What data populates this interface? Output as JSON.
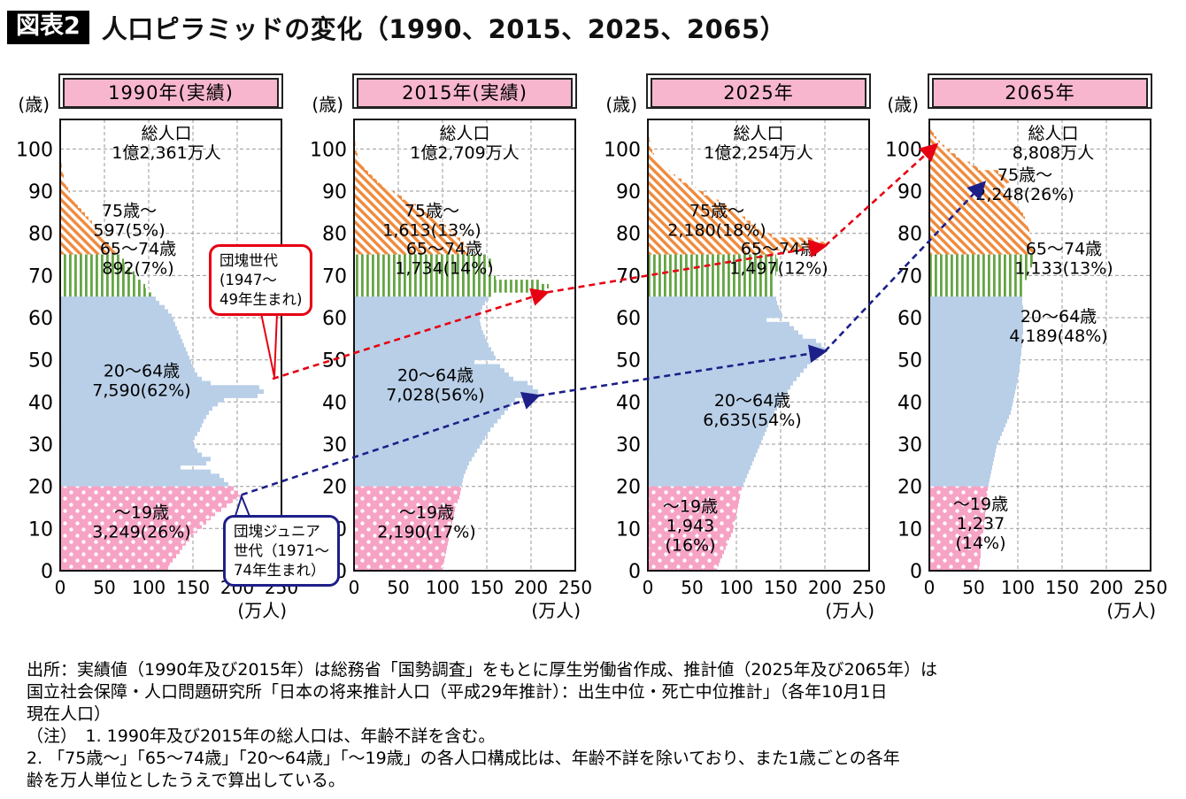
{
  "title": {
    "tag": "図表2",
    "text": "人口ピラミッドの変化（1990、2015、2025、2065）"
  },
  "axes": {
    "age_unit": "(歳)",
    "pop_unit": "(万人)",
    "age_ticks": [
      0,
      10,
      20,
      30,
      40,
      50,
      60,
      70,
      80,
      90,
      100
    ],
    "pop_ticks": [
      0,
      50,
      100,
      150,
      200,
      250
    ]
  },
  "colors": {
    "orange": "#ef8a3c",
    "green": "#64a544",
    "blue": "#b9cfe8",
    "pink": "#f6a3c5",
    "header_pink": "#f8b6ce",
    "red_accent": "#e60012",
    "blue_accent": "#1d2088"
  },
  "callouts": {
    "dankai": {
      "lines": [
        "団塊世代",
        "(1947〜",
        "49年生まれ)"
      ]
    },
    "dankai_junior": {
      "lines": [
        "団塊ジュニア",
        "世代（1971〜",
        "74年生まれ）"
      ]
    }
  },
  "source": {
    "lines": [
      "出所：実績値（1990年及び2015年）は総務省「国勢調査」をもとに厚生労働省作成、推計値（2025年及び2065年）は",
      "国立社会保障・人口問題研究所「日本の将来推計人口（平成29年推計）：出生中位・死亡中位推計」（各年10月1日",
      "現在人口）",
      "（注）　1. 1990年及び2015年の総人口は、年齢不詳を含む。",
      "2. 「75歳〜」「65〜74歳」「20〜64歳」「〜19歳」の各人口構成比は、年齢不詳を除いており、また1歳ごとの各年",
      "齢を万人単位としたうえで算出している。"
    ]
  },
  "chart_data": {
    "type": "bar",
    "orientation": "horizontal-population-pyramid",
    "unit": "万人",
    "age_range": [
      0,
      104
    ],
    "pop_axis_range": [
      0,
      250
    ],
    "panels": [
      {
        "id": "1990",
        "header": "1990年(実績)",
        "total_lines": [
          "総人口",
          "1億2,361万人"
        ],
        "groups": [
          {
            "label": "75歳〜",
            "value_label": "597(5%)",
            "label_lines": [
              "75歳〜",
              "597(5%)"
            ],
            "range": [
              75,
              104
            ],
            "pattern": "orange-diagonal"
          },
          {
            "label": "65〜74歳",
            "value_label": "892(7%)",
            "label_lines": [
              "65〜74歳",
              "892(7%)"
            ],
            "range": [
              65,
              74
            ],
            "pattern": "green-vertical"
          },
          {
            "label": "20〜64歳",
            "value_label": "7,590(62%)",
            "label_lines": [
              "20〜64歳",
              "7,590(62%)"
            ],
            "range": [
              20,
              64
            ],
            "pattern": "blue-solid"
          },
          {
            "label": "〜19歳",
            "value_label": "3,249(26%)",
            "label_lines": [
              "〜19歳",
              "3,249(26%)"
            ],
            "range": [
              0,
              19
            ],
            "pattern": "pink-dots"
          }
        ],
        "by_age": [
          122,
          124,
          127,
          131,
          135,
          138,
          142,
          146,
          150,
          155,
          160,
          165,
          170,
          175,
          182,
          188,
          195,
          205,
          201,
          196,
          190,
          185,
          180,
          170,
          136,
          165,
          170,
          160,
          155,
          152,
          150,
          152,
          155,
          158,
          160,
          162,
          165,
          168,
          172,
          178,
          185,
          223,
          230,
          225,
          170,
          160,
          155,
          152,
          150,
          148,
          146,
          144,
          142,
          140,
          138,
          136,
          134,
          132,
          130,
          128,
          126,
          122,
          118,
          112,
          108,
          104,
          100,
          96,
          92,
          88,
          84,
          80,
          76,
          72,
          68,
          64,
          60,
          56,
          52,
          48,
          44,
          40,
          36,
          32,
          28,
          24,
          20,
          17,
          14,
          11,
          9,
          7,
          5,
          4,
          3,
          2,
          1.5,
          1,
          0.7,
          0.5,
          0.3,
          0.2,
          0.1,
          0.1,
          0
        ]
      },
      {
        "id": "2015",
        "header": "2015年(実績)",
        "total_lines": [
          "総人口",
          "1億2,709万人"
        ],
        "groups": [
          {
            "label": "75歳〜",
            "value_label": "1,613(13%)",
            "label_lines": [
              "75歳〜",
              "1,613(13%)"
            ],
            "range": [
              75,
              104
            ],
            "pattern": "orange-diagonal"
          },
          {
            "label": "65〜74歳",
            "value_label": "1,734(14%)",
            "label_lines": [
              "65〜74歳",
              "1,734(14%)"
            ],
            "range": [
              65,
              74
            ],
            "pattern": "green-vertical"
          },
          {
            "label": "20〜64歳",
            "value_label": "7,028(56%)",
            "label_lines": [
              "20〜64歳",
              "7,028(56%)"
            ],
            "range": [
              20,
              64
            ],
            "pattern": "blue-solid"
          },
          {
            "label": "〜19歳",
            "value_label": "2,190(17%)",
            "label_lines": [
              "〜19歳",
              "2,190(17%)"
            ],
            "range": [
              0,
              19
            ],
            "pattern": "pink-dots"
          }
        ],
        "by_age": [
          100,
          101,
          102,
          103,
          104,
          105,
          106,
          107,
          108,
          109,
          110,
          111,
          112,
          113,
          114,
          115,
          117,
          119,
          120,
          121,
          122,
          123,
          124,
          126,
          128,
          130,
          133,
          136,
          139,
          142,
          145,
          148,
          151,
          154,
          158,
          162,
          166,
          170,
          174,
          178,
          182,
          200,
          208,
          202,
          196,
          180,
          175,
          170,
          165,
          136,
          160,
          158,
          155,
          152,
          150,
          148,
          146,
          144,
          143,
          142,
          142,
          143,
          145,
          148,
          152,
          158,
          215,
          220,
          212,
          160,
          150,
          152,
          155,
          158,
          150,
          132,
          128,
          124,
          120,
          115,
          110,
          104,
          98,
          92,
          85,
          78,
          70,
          62,
          54,
          46,
          39,
          32,
          26,
          21,
          16,
          12,
          9,
          6,
          4,
          3,
          2,
          1.4,
          0.9,
          0.5,
          0.3
        ]
      },
      {
        "id": "2025",
        "header": "2025年",
        "total_lines": [
          "総人口",
          "1億2,254万人"
        ],
        "groups": [
          {
            "label": "75歳〜",
            "value_label": "2,180(18%)",
            "label_lines": [
              "75歳〜",
              "2,180(18%)"
            ],
            "range": [
              75,
              104
            ],
            "pattern": "orange-diagonal"
          },
          {
            "label": "65〜74歳",
            "value_label": "1,497(12%)",
            "label_lines": [
              "65〜74歳",
              "1,497(12%)"
            ],
            "range": [
              65,
              74
            ],
            "pattern": "green-vertical"
          },
          {
            "label": "20〜64歳",
            "value_label": "6,635(54%)",
            "label_lines": [
              "20〜64歳",
              "6,635(54%)"
            ],
            "range": [
              20,
              64
            ],
            "pattern": "blue-solid"
          },
          {
            "label": "〜19歳",
            "value_label": "1,943(16%)",
            "label_lines": [
              "〜19歳",
              "1,943",
              "(16%)"
            ],
            "range": [
              0,
              19
            ],
            "pattern": "pink-dots"
          }
        ],
        "by_age": [
          78,
          80,
          82,
          84,
          86,
          88,
          90,
          92,
          94,
          96,
          97,
          98,
          99,
          100,
          101,
          102,
          103,
          104,
          105,
          106,
          108,
          110,
          112,
          114,
          116,
          118,
          120,
          122,
          124,
          126,
          128,
          130,
          132,
          134,
          136,
          138,
          140,
          143,
          146,
          149,
          152,
          155,
          158,
          161,
          164,
          168,
          172,
          176,
          180,
          184,
          188,
          196,
          200,
          196,
          190,
          175,
          170,
          165,
          160,
          134,
          152,
          150,
          148,
          146,
          145,
          144,
          143,
          142,
          142,
          143,
          145,
          148,
          150,
          148,
          145,
          142,
          195,
          200,
          192,
          140,
          128,
          122,
          116,
          110,
          103,
          96,
          88,
          80,
          72,
          63,
          54,
          46,
          38,
          31,
          25,
          19,
          14,
          10,
          7,
          5,
          3.5,
          2.4,
          1.6,
          1,
          0.6
        ]
      },
      {
        "id": "2065",
        "header": "2065年",
        "total_lines": [
          "総人口",
          "8,808万人"
        ],
        "groups": [
          {
            "label": "75歳〜",
            "value_label": "2,248(26%)",
            "label_lines": [
              "75歳〜",
              "2,248(26%)"
            ],
            "range": [
              75,
              104
            ],
            "pattern": "orange-diagonal"
          },
          {
            "label": "65〜74歳",
            "value_label": "1,133(13%)",
            "label_lines": [
              "65〜74歳",
              "1,133(13%)"
            ],
            "range": [
              65,
              74
            ],
            "pattern": "green-vertical"
          },
          {
            "label": "20〜64歳",
            "value_label": "4,189(48%)",
            "label_lines": [
              "20〜64歳",
              "4,189(48%)"
            ],
            "range": [
              20,
              64
            ],
            "pattern": "blue-solid"
          },
          {
            "label": "〜19歳",
            "value_label": "1,237(14%)",
            "label_lines": [
              "〜19歳",
              "1,237",
              "(14%)"
            ],
            "range": [
              0,
              19
            ],
            "pattern": "pink-dots"
          }
        ],
        "by_age": [
          56,
          57,
          57,
          58,
          58,
          59,
          59,
          60,
          60,
          61,
          62,
          62,
          63,
          63,
          64,
          64,
          65,
          65,
          66,
          66,
          67,
          68,
          69,
          70,
          71,
          72,
          73,
          74,
          75,
          76,
          78,
          80,
          82,
          84,
          86,
          88,
          90,
          92,
          93,
          94,
          95,
          96,
          97,
          98,
          99,
          100,
          101,
          102,
          102,
          103,
          103,
          104,
          104,
          105,
          105,
          105,
          106,
          106,
          106,
          106,
          106,
          106,
          106,
          105,
          105,
          105,
          106,
          107,
          108,
          110,
          112,
          114,
          116,
          118,
          118,
          118,
          117,
          116,
          115,
          114,
          113,
          112,
          110,
          108,
          106,
          103,
          100,
          96,
          92,
          88,
          84,
          88,
          90,
          86,
          78,
          55,
          46,
          38,
          30,
          23,
          17,
          12,
          8,
          5,
          3
        ]
      }
    ],
    "cohort_tracks": [
      {
        "name": "dankai",
        "label": "団塊世代(1947〜49年生まれ)",
        "points": [
          {
            "panel": 0,
            "age": 45.5,
            "pop": 240
          },
          {
            "panel": 1,
            "age": 66,
            "pop": 218
          },
          {
            "panel": 2,
            "age": 77,
            "pop": 200
          },
          {
            "panel": 3,
            "age": 101,
            "pop": 8
          }
        ]
      },
      {
        "name": "dankai-junior",
        "label": "団塊ジュニア世代（1971〜74年生まれ）",
        "points": [
          {
            "panel": 0,
            "age": 18,
            "pop": 205
          },
          {
            "panel": 1,
            "age": 41.5,
            "pop": 208
          },
          {
            "panel": 2,
            "age": 52,
            "pop": 200
          },
          {
            "panel": 3,
            "age": 92,
            "pop": 62
          }
        ]
      }
    ]
  }
}
